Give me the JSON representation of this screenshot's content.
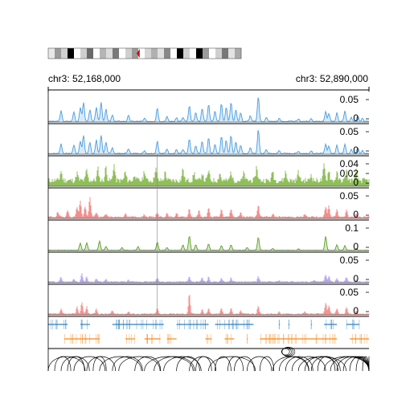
{
  "chart_data": {
    "type": "genome-tracks",
    "region": {
      "start_label": "chr3: 52,168,000",
      "end_label": "chr3: 52,890,000",
      "start": 52168000,
      "end": 52890000
    },
    "ideogram": {
      "bands": [
        "#e8e8e8",
        "#9a9a9a",
        "#d0d0d0",
        "#000000",
        "#ffffff",
        "#cfcfcf",
        "#6a6a6a",
        "#ffffff",
        "#b5b5b5",
        "#dcdcdc",
        "#7a7a7a",
        "#ffffff",
        "#cfcfcf",
        "#9a9a9a",
        "#ffffff",
        "#d5d5d5",
        "#b0b0b0",
        "#e0e0e0",
        "#888888",
        "#ffffff",
        "#000000",
        "#d0d0d0",
        "#ffffff",
        "#000000",
        "#9a9a9a",
        "#ffffff",
        "#cfcfcf",
        "#777777",
        "#e3e3e3",
        "#aaaaaa"
      ],
      "centromere_color": "#c0151b",
      "centromere_position": 0.47
    },
    "tracks": [
      {
        "kind": "line",
        "color": "#4a9de0",
        "fill": "#a9d0f2",
        "ymax": 0.05,
        "ticks": [
          "0.05",
          "0"
        ],
        "seed": 3,
        "peaks": [
          [
            0.04,
            0.022
          ],
          [
            0.08,
            0.02
          ],
          [
            0.1,
            0.028
          ],
          [
            0.11,
            0.04
          ],
          [
            0.13,
            0.025
          ],
          [
            0.15,
            0.03
          ],
          [
            0.165,
            0.04
          ],
          [
            0.18,
            0.025
          ],
          [
            0.2,
            0.013
          ],
          [
            0.25,
            0.012
          ],
          [
            0.3,
            0.006
          ],
          [
            0.34,
            0.028
          ],
          [
            0.37,
            0.01
          ],
          [
            0.4,
            0.008
          ],
          [
            0.42,
            0.008
          ],
          [
            0.44,
            0.032
          ],
          [
            0.46,
            0.018
          ],
          [
            0.48,
            0.028
          ],
          [
            0.5,
            0.036
          ],
          [
            0.52,
            0.022
          ],
          [
            0.54,
            0.038
          ],
          [
            0.555,
            0.03
          ],
          [
            0.57,
            0.04
          ],
          [
            0.585,
            0.025
          ],
          [
            0.6,
            0.018
          ],
          [
            0.63,
            0.012
          ],
          [
            0.655,
            0.052
          ],
          [
            0.68,
            0.008
          ],
          [
            0.72,
            0.006
          ],
          [
            0.78,
            0.005
          ],
          [
            0.82,
            0.006
          ],
          [
            0.865,
            0.02
          ],
          [
            0.875,
            0.016
          ],
          [
            0.9,
            0.018
          ],
          [
            0.925,
            0.022
          ],
          [
            0.945,
            0.008
          ],
          [
            0.965,
            0.012
          ],
          [
            0.98,
            0.006
          ]
        ]
      },
      {
        "kind": "line",
        "color": "#4a9de0",
        "fill": "#a9d0f2",
        "ymax": 0.05,
        "ticks": [
          "0.05",
          "0"
        ],
        "seed": 7,
        "peaks": [
          [
            0.04,
            0.02
          ],
          [
            0.08,
            0.018
          ],
          [
            0.1,
            0.026
          ],
          [
            0.11,
            0.038
          ],
          [
            0.13,
            0.024
          ],
          [
            0.15,
            0.028
          ],
          [
            0.165,
            0.038
          ],
          [
            0.18,
            0.024
          ],
          [
            0.2,
            0.012
          ],
          [
            0.25,
            0.01
          ],
          [
            0.3,
            0.006
          ],
          [
            0.34,
            0.026
          ],
          [
            0.37,
            0.01
          ],
          [
            0.4,
            0.008
          ],
          [
            0.42,
            0.008
          ],
          [
            0.44,
            0.03
          ],
          [
            0.46,
            0.016
          ],
          [
            0.48,
            0.026
          ],
          [
            0.5,
            0.034
          ],
          [
            0.52,
            0.02
          ],
          [
            0.54,
            0.036
          ],
          [
            0.555,
            0.028
          ],
          [
            0.57,
            0.038
          ],
          [
            0.585,
            0.024
          ],
          [
            0.6,
            0.018
          ],
          [
            0.63,
            0.012
          ],
          [
            0.655,
            0.05
          ],
          [
            0.68,
            0.008
          ],
          [
            0.72,
            0.006
          ],
          [
            0.78,
            0.005
          ],
          [
            0.82,
            0.006
          ],
          [
            0.865,
            0.02
          ],
          [
            0.875,
            0.016
          ],
          [
            0.9,
            0.018
          ],
          [
            0.925,
            0.02
          ],
          [
            0.945,
            0.008
          ],
          [
            0.965,
            0.012
          ],
          [
            0.98,
            0.006
          ]
        ]
      },
      {
        "kind": "bar",
        "color": "#6aa531",
        "fill": "#8fbf58",
        "ymax": 0.045,
        "ticks": [
          "0.04",
          "0.02",
          "0"
        ],
        "seed": 11,
        "base": 0.006,
        "noise": 0.01,
        "peaks": [
          [
            0.04,
            0.018
          ],
          [
            0.09,
            0.014
          ],
          [
            0.12,
            0.02
          ],
          [
            0.155,
            0.022
          ],
          [
            0.18,
            0.026
          ],
          [
            0.205,
            0.03
          ],
          [
            0.24,
            0.016
          ],
          [
            0.27,
            0.012
          ],
          [
            0.3,
            0.018
          ],
          [
            0.335,
            0.024
          ],
          [
            0.365,
            0.016
          ],
          [
            0.42,
            0.022
          ],
          [
            0.455,
            0.014
          ],
          [
            0.48,
            0.014
          ],
          [
            0.5,
            0.018
          ],
          [
            0.535,
            0.014
          ],
          [
            0.57,
            0.016
          ],
          [
            0.61,
            0.014
          ],
          [
            0.65,
            0.026
          ],
          [
            0.7,
            0.018
          ],
          [
            0.74,
            0.016
          ],
          [
            0.78,
            0.016
          ],
          [
            0.82,
            0.012
          ],
          [
            0.86,
            0.028
          ],
          [
            0.875,
            0.02
          ],
          [
            0.9,
            0.014
          ],
          [
            0.93,
            0.02
          ],
          [
            0.96,
            0.018
          ]
        ]
      },
      {
        "kind": "bar",
        "color": "#e8605f",
        "fill": "#f28d8b",
        "ymax": 0.06,
        "ticks": [
          "0.05",
          "0"
        ],
        "seed": 19,
        "base": 0.002,
        "noise": 0.004,
        "peaks": [
          [
            0.03,
            0.012
          ],
          [
            0.06,
            0.018
          ],
          [
            0.09,
            0.025
          ],
          [
            0.1,
            0.04
          ],
          [
            0.115,
            0.026
          ],
          [
            0.13,
            0.05
          ],
          [
            0.15,
            0.012
          ],
          [
            0.18,
            0.008
          ],
          [
            0.24,
            0.008
          ],
          [
            0.3,
            0.006
          ],
          [
            0.34,
            0.012
          ],
          [
            0.37,
            0.008
          ],
          [
            0.4,
            0.01
          ],
          [
            0.44,
            0.02
          ],
          [
            0.47,
            0.016
          ],
          [
            0.5,
            0.022
          ],
          [
            0.54,
            0.018
          ],
          [
            0.57,
            0.02
          ],
          [
            0.6,
            0.012
          ],
          [
            0.655,
            0.03
          ],
          [
            0.7,
            0.008
          ],
          [
            0.8,
            0.006
          ],
          [
            0.865,
            0.025
          ],
          [
            0.875,
            0.028
          ],
          [
            0.9,
            0.018
          ],
          [
            0.93,
            0.02
          ],
          [
            0.96,
            0.008
          ]
        ]
      },
      {
        "kind": "line",
        "color": "#5e9e2a",
        "fill": "#a6cf7f",
        "ymax": 0.13,
        "ticks": [
          "0.1",
          "0"
        ],
        "seed": 23,
        "peaks": [
          [
            0.1,
            0.04
          ],
          [
            0.12,
            0.04
          ],
          [
            0.16,
            0.05
          ],
          [
            0.18,
            0.02
          ],
          [
            0.23,
            0.015
          ],
          [
            0.28,
            0.02
          ],
          [
            0.34,
            0.045
          ],
          [
            0.37,
            0.015
          ],
          [
            0.42,
            0.03
          ],
          [
            0.44,
            0.08
          ],
          [
            0.46,
            0.03
          ],
          [
            0.5,
            0.035
          ],
          [
            0.54,
            0.025
          ],
          [
            0.57,
            0.03
          ],
          [
            0.62,
            0.015
          ],
          [
            0.655,
            0.07
          ],
          [
            0.7,
            0.01
          ],
          [
            0.78,
            0.008
          ],
          [
            0.865,
            0.075
          ],
          [
            0.9,
            0.03
          ],
          [
            0.925,
            0.025
          ],
          [
            0.96,
            0.01
          ]
        ]
      },
      {
        "kind": "bar",
        "color": "#9b87e0",
        "fill": "#b7a8ee",
        "ymax": 0.06,
        "ticks": [
          "0.05",
          "0"
        ],
        "seed": 29,
        "base": 0.001,
        "noise": 0.003,
        "peaks": [
          [
            0.04,
            0.012
          ],
          [
            0.08,
            0.008
          ],
          [
            0.105,
            0.02
          ],
          [
            0.12,
            0.012
          ],
          [
            0.15,
            0.008
          ],
          [
            0.18,
            0.006
          ],
          [
            0.25,
            0.004
          ],
          [
            0.34,
            0.01
          ],
          [
            0.44,
            0.012
          ],
          [
            0.48,
            0.01
          ],
          [
            0.5,
            0.012
          ],
          [
            0.54,
            0.01
          ],
          [
            0.57,
            0.01
          ],
          [
            0.655,
            0.014
          ],
          [
            0.72,
            0.004
          ],
          [
            0.83,
            0.004
          ],
          [
            0.865,
            0.018
          ],
          [
            0.875,
            0.014
          ],
          [
            0.9,
            0.01
          ],
          [
            0.93,
            0.012
          ],
          [
            0.96,
            0.006
          ]
        ]
      },
      {
        "kind": "bar",
        "color": "#e8605f",
        "fill": "#f29391",
        "ymax": 0.06,
        "ticks": [
          "0.05",
          "0"
        ],
        "seed": 37,
        "base": 0.001,
        "noise": 0.003,
        "peaks": [
          [
            0.04,
            0.012
          ],
          [
            0.09,
            0.018
          ],
          [
            0.105,
            0.03
          ],
          [
            0.12,
            0.018
          ],
          [
            0.15,
            0.012
          ],
          [
            0.2,
            0.008
          ],
          [
            0.25,
            0.006
          ],
          [
            0.34,
            0.014
          ],
          [
            0.44,
            0.05
          ],
          [
            0.48,
            0.012
          ],
          [
            0.5,
            0.014
          ],
          [
            0.54,
            0.014
          ],
          [
            0.57,
            0.014
          ],
          [
            0.6,
            0.008
          ],
          [
            0.655,
            0.02
          ],
          [
            0.72,
            0.006
          ],
          [
            0.8,
            0.006
          ],
          [
            0.865,
            0.028
          ],
          [
            0.875,
            0.022
          ],
          [
            0.9,
            0.014
          ],
          [
            0.93,
            0.016
          ],
          [
            0.96,
            0.008
          ]
        ]
      }
    ],
    "genes": [
      {
        "strand": "plus",
        "color": "#2f7fc1",
        "segments": [
          [
            0.0,
            0.06
          ],
          [
            0.1,
            0.13
          ],
          [
            0.2,
            0.36
          ],
          [
            0.4,
            0.5
          ],
          [
            0.52,
            0.64
          ],
          [
            0.72,
            0.72
          ],
          [
            0.75,
            0.75
          ],
          [
            0.82,
            0.82
          ],
          [
            0.86,
            0.9
          ],
          [
            0.93,
            0.97
          ]
        ]
      },
      {
        "strand": "minus",
        "color": "#f58a1f",
        "segments": [
          [
            0.05,
            0.16
          ],
          [
            0.24,
            0.27
          ],
          [
            0.3,
            0.35
          ],
          [
            0.37,
            0.4
          ],
          [
            0.49,
            0.51
          ],
          [
            0.55,
            0.58
          ],
          [
            0.62,
            0.62
          ],
          [
            0.66,
            0.9
          ],
          [
            0.94,
            1.0
          ]
        ]
      }
    ],
    "interactions_color": "#000000"
  }
}
